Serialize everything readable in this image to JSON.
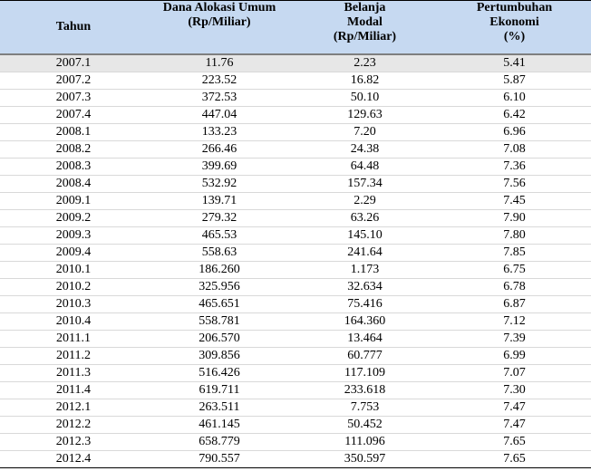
{
  "table": {
    "headers": [
      [
        "Tahun"
      ],
      [
        "Dana Alokasi Umum",
        "(Rp/Miliar)"
      ],
      [
        "Belanja",
        "Modal",
        "(Rp/Miliar)"
      ],
      [
        "Pertumbuhan",
        "Ekonomi",
        "(%)"
      ]
    ],
    "rows": [
      [
        "2007.1",
        "11.76",
        "2.23",
        "5.41"
      ],
      [
        "2007.2",
        "223.52",
        "16.82",
        "5.87"
      ],
      [
        "2007.3",
        "372.53",
        "50.10",
        "6.10"
      ],
      [
        "2007.4",
        "447.04",
        "129.63",
        "6.42"
      ],
      [
        "2008.1",
        "133.23",
        "7.20",
        "6.96"
      ],
      [
        "2008.2",
        "266.46",
        "24.38",
        "7.08"
      ],
      [
        "2008.3",
        "399.69",
        "64.48",
        "7.36"
      ],
      [
        "2008.4",
        "532.92",
        "157.34",
        "7.56"
      ],
      [
        "2009.1",
        "139.71",
        "2.29",
        "7.45"
      ],
      [
        "2009.2",
        "279.32",
        "63.26",
        "7.90"
      ],
      [
        "2009.3",
        "465.53",
        "145.10",
        "7.80"
      ],
      [
        "2009.4",
        "558.63",
        "241.64",
        "7.85"
      ],
      [
        "2010.1",
        "186.260",
        "1.173",
        "6.75"
      ],
      [
        "2010.2",
        "325.956",
        "32.634",
        "6.78"
      ],
      [
        "2010.3",
        "465.651",
        "75.416",
        "6.87"
      ],
      [
        "2010.4",
        "558.781",
        "164.360",
        "7.12"
      ],
      [
        "2011.1",
        "206.570",
        "13.464",
        "7.39"
      ],
      [
        "2011.2",
        "309.856",
        "60.777",
        "6.99"
      ],
      [
        "2011.3",
        "516.426",
        "117.109",
        "7.07"
      ],
      [
        "2011.4",
        "619.711",
        "233.618",
        "7.30"
      ],
      [
        "2012.1",
        "263.511",
        "7.753",
        "7.47"
      ],
      [
        "2012.2",
        "461.145",
        "50.452",
        "7.47"
      ],
      [
        "2012.3",
        "658.779",
        "111.096",
        "7.65"
      ],
      [
        "2012.4",
        "790.557",
        "350.597",
        "7.65"
      ]
    ]
  }
}
